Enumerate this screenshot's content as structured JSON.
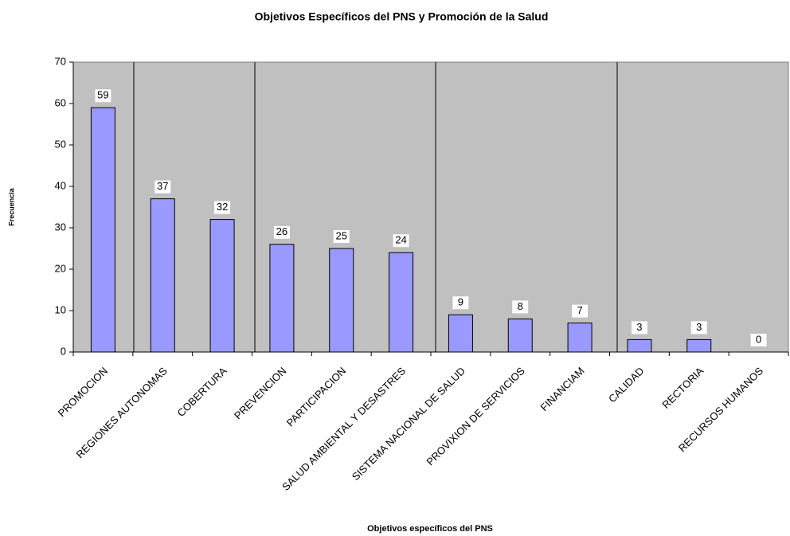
{
  "chart_data": {
    "type": "bar",
    "title": "Objetivos Específicos del PNS y Promoción de la Salud",
    "x_label": "Objetivos específicos del PNS",
    "y_label": "Frecuencia",
    "categories": [
      "PROMOCION",
      "REGIONES AUTONOMAS",
      "COBERTURA",
      "PREVENCION",
      "PARTICIPACION",
      "SALUD AMBIENTAL Y DESASTRES",
      "SISTEMA NACIONAL DE SALUD",
      "PROVIXION DE SERVICIOS",
      "FINANCIAM",
      "CALIDAD",
      "RECTORIA",
      "RECURSOS HUMANOS"
    ],
    "values": [
      59,
      37,
      32,
      26,
      25,
      24,
      9,
      8,
      7,
      3,
      3,
      0
    ],
    "color": "#9999ff",
    "ylim": [
      0,
      70
    ],
    "yticks": [
      0,
      10,
      20,
      30,
      40,
      50,
      60,
      70
    ]
  }
}
